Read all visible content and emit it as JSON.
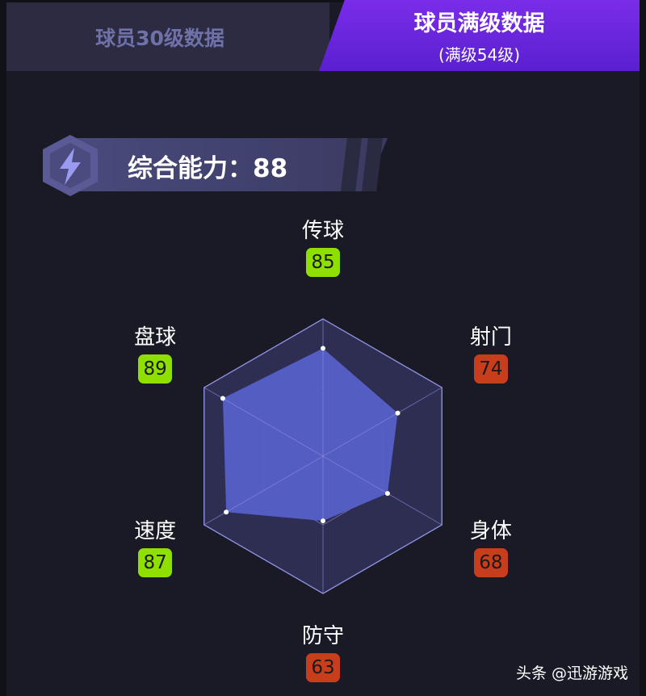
{
  "tabs": [
    {
      "label": "球员30级数据",
      "active": false
    },
    {
      "label": "球员满级数据",
      "sublabel": "(满级54级)",
      "active": true
    }
  ],
  "overall": {
    "label": "综合能力：88",
    "icon": "lightning-icon"
  },
  "colors": {
    "high": "#8ee000",
    "low": "#c83d1c",
    "fill": "#5560c8",
    "grid": "#8f90e0"
  },
  "chart_data": {
    "type": "radar",
    "categories": [
      "传球",
      "射门",
      "身体",
      "防守",
      "速度",
      "盘球"
    ],
    "values": [
      85,
      74,
      68,
      63,
      87,
      89
    ],
    "levels": [
      "high",
      "low",
      "low",
      "low",
      "high",
      "high"
    ],
    "rlim": [
      30,
      100
    ]
  },
  "watermark": "头条 @迅游游戏"
}
